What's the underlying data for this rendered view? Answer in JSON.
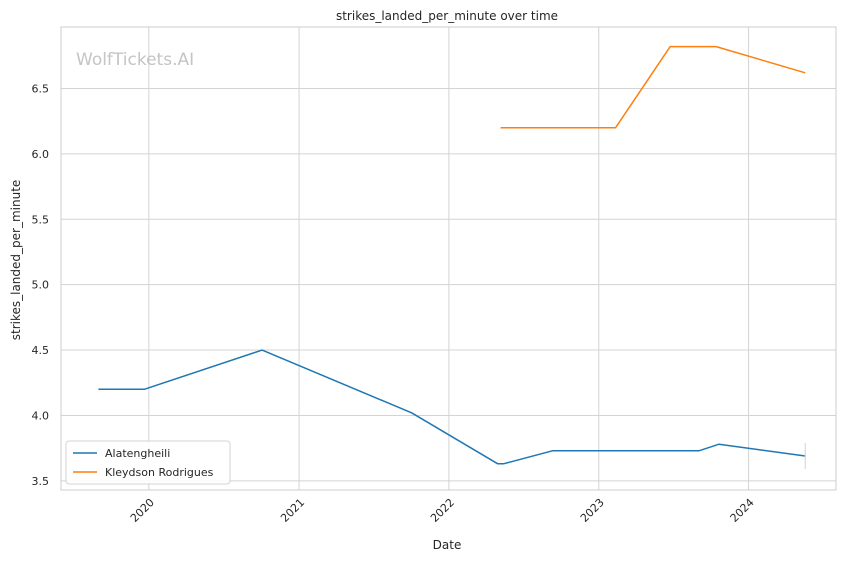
{
  "chart_data": {
    "type": "line",
    "title": "strikes_landed_per_minute over time",
    "xlabel": "Date",
    "ylabel": "strikes_landed_per_minute",
    "watermark": "WolfTickets.AI",
    "x_range": [
      "2019-06-01",
      "2024-08-01"
    ],
    "ylim": [
      3.43,
      6.97
    ],
    "x_ticks": [
      {
        "date": "2020-01-01",
        "label": "2020"
      },
      {
        "date": "2021-01-01",
        "label": "2021"
      },
      {
        "date": "2022-01-01",
        "label": "2022"
      },
      {
        "date": "2023-01-01",
        "label": "2023"
      },
      {
        "date": "2024-01-01",
        "label": "2024"
      }
    ],
    "y_ticks": [
      {
        "value": 3.5,
        "label": "3.5"
      },
      {
        "value": 4.0,
        "label": "4.0"
      },
      {
        "value": 4.5,
        "label": "4.5"
      },
      {
        "value": 5.0,
        "label": "5.0"
      },
      {
        "value": 5.5,
        "label": "5.5"
      },
      {
        "value": 6.0,
        "label": "6.0"
      },
      {
        "value": 6.5,
        "label": "6.5"
      }
    ],
    "grid": true,
    "legend_position": "lower-left",
    "series": [
      {
        "name": "Alatengheili",
        "color": "#1f77b4",
        "points": [
          {
            "x": "2019-08-31",
            "y": 4.2
          },
          {
            "x": "2019-12-21",
            "y": 4.2
          },
          {
            "x": "2020-10-03",
            "y": 4.5
          },
          {
            "x": "2021-10-02",
            "y": 4.02
          },
          {
            "x": "2022-04-30",
            "y": 3.63
          },
          {
            "x": "2022-05-14",
            "y": 3.63
          },
          {
            "x": "2022-09-10",
            "y": 3.73
          },
          {
            "x": "2023-09-02",
            "y": 3.73
          },
          {
            "x": "2023-10-21",
            "y": 3.78
          },
          {
            "x": "2024-05-18",
            "y": 3.69
          }
        ]
      },
      {
        "name": "Kleydson Rodrigues",
        "color": "#ff7f0e",
        "points": [
          {
            "x": "2022-05-07",
            "y": 6.2
          },
          {
            "x": "2023-02-11",
            "y": 6.2
          },
          {
            "x": "2023-06-24",
            "y": 6.82
          },
          {
            "x": "2023-10-14",
            "y": 6.82
          },
          {
            "x": "2024-05-18",
            "y": 6.62
          }
        ]
      }
    ]
  }
}
